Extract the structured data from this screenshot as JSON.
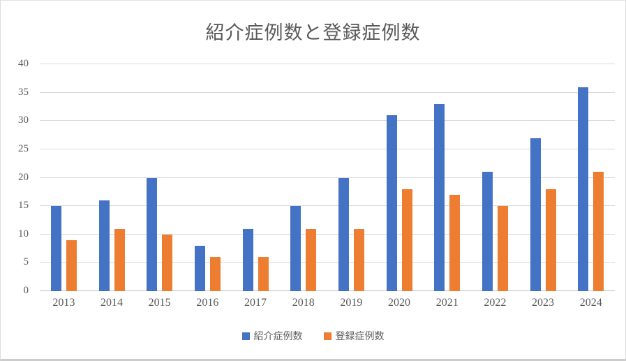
{
  "chart_data": {
    "type": "bar",
    "title": "紹介症例数と登録症例数",
    "categories": [
      "2013",
      "2014",
      "2015",
      "2016",
      "2017",
      "2018",
      "2019",
      "2020",
      "2021",
      "2022",
      "2023",
      "2024"
    ],
    "series": [
      {
        "name": "紹介症例数",
        "color": "#4472C4",
        "values": [
          15,
          16,
          20,
          8,
          11,
          15,
          20,
          31,
          33,
          21,
          27,
          36
        ]
      },
      {
        "name": "登録症例数",
        "color": "#ED7D31",
        "values": [
          9,
          11,
          10,
          6,
          6,
          11,
          11,
          18,
          17,
          15,
          18,
          21
        ]
      }
    ],
    "xlabel": "",
    "ylabel": "",
    "ylim": [
      0,
      40
    ],
    "y_tick_step": 5,
    "y_tick_labels": [
      "0",
      "5",
      "10",
      "15",
      "20",
      "25",
      "30",
      "35",
      "40"
    ],
    "grid": true,
    "legend_position": "bottom",
    "colors": {
      "grid": "#D9D9D9",
      "axis": "#BFBFBF",
      "text": "#595959",
      "background": "#FFFFFF"
    }
  }
}
